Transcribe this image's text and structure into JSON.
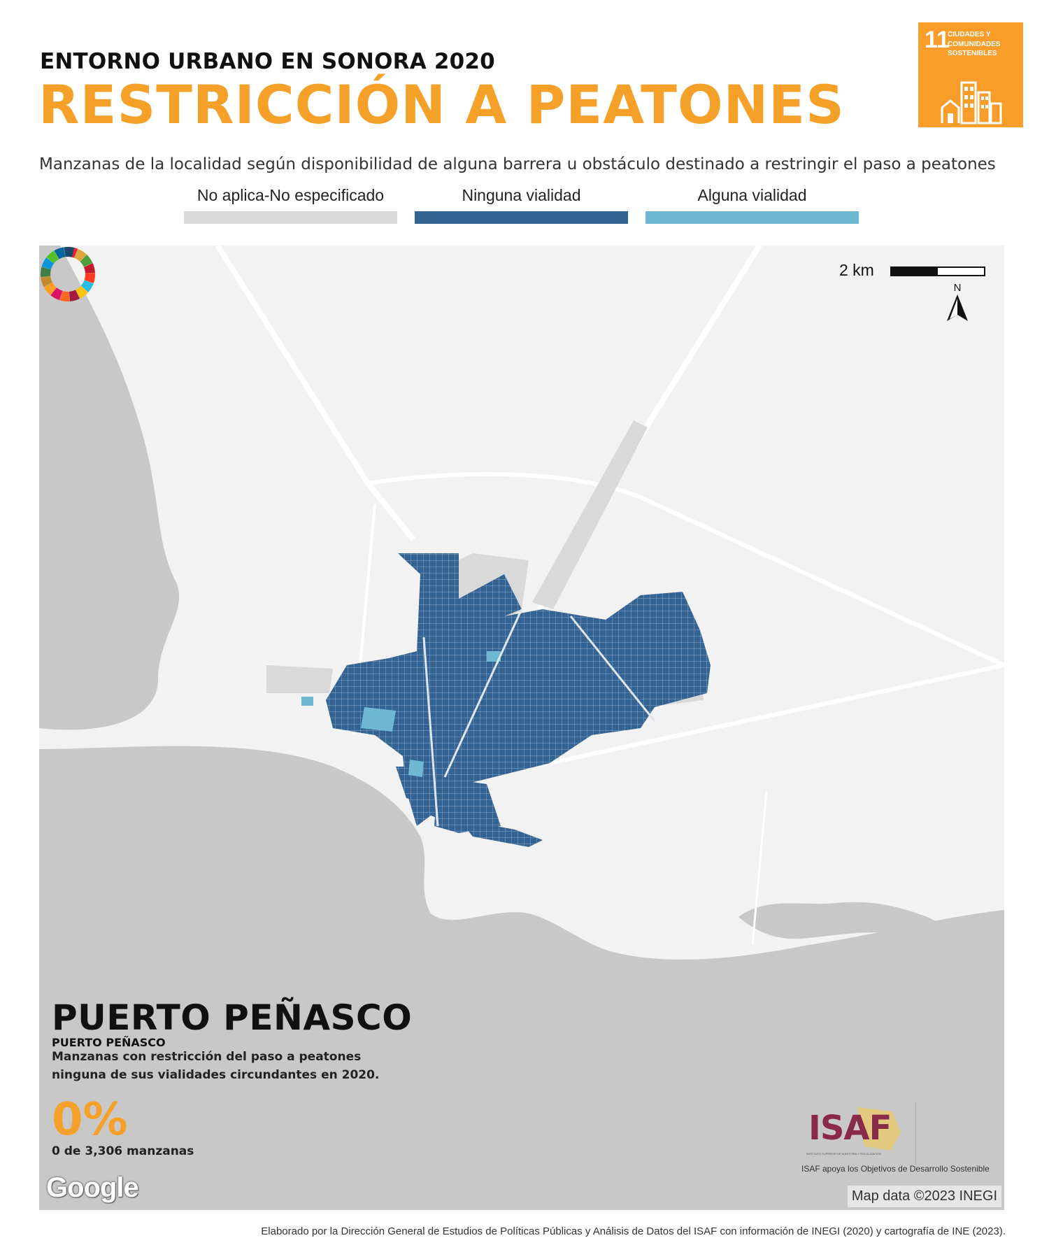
{
  "header": {
    "kicker": "ENTORNO URBANO EN SONORA 2020",
    "title": "RESTRICCIÓN A PEATONES",
    "subtitle": "Manzanas de la localidad según disponibilidad de alguna barrera u obstáculo destinado a restringir el paso a peatones"
  },
  "sdg_badge": {
    "number": "11",
    "text": "CIUDADES Y COMUNIDADES SOSTENIBLES",
    "color": "#f89d2a",
    "icon": "city-buildings-icon"
  },
  "legend": [
    {
      "label": "No aplica-No especificado",
      "color": "#d9d9d9"
    },
    {
      "label": "Ninguna vialidad",
      "color": "#336393"
    },
    {
      "label": "Alguna vialidad",
      "color": "#6fb8d4"
    }
  ],
  "map": {
    "scale_label": "2 km",
    "north_label": "N",
    "land_color": "#f2f2f2",
    "water_color": "#c8c8c8",
    "attribution": "Map data ©2023 INEGI",
    "provider": "Google"
  },
  "locality": {
    "name": "PUERTO PEÑASCO",
    "municipality": "PUERTO PEÑASCO",
    "stat_text": "Manzanas con restricción del paso a peatones ninguna de sus vialidades circundantes en 2020.",
    "percentage": "0%",
    "count_text": "0 de 3,306 manzanas"
  },
  "logos": {
    "isaf": "ISAF",
    "isaf_full": "INSTITUTO SUPERIOR DE AUDITORÍA Y FISCALIZACIÓN",
    "caption": "ISAF apoya los Objetivos de Desarrollo Sostenible"
  },
  "footer": "Elaborado por la Dirección General de Estudios de Políticas Públicas y Análisis de Datos del ISAF con información de INEGI (2020) y cartografía de INE (2023)."
}
